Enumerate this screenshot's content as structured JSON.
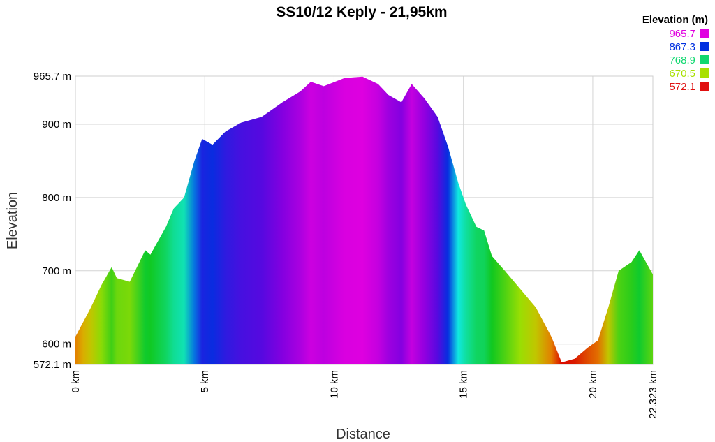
{
  "chart_data": {
    "type": "area",
    "title": "SS10/12 Keply - 21,95km",
    "xlabel": "Distance",
    "ylabel": "Elevation",
    "xlim": [
      0,
      22.323
    ],
    "ylim": [
      572.1,
      965.7
    ],
    "x_ticks": [
      {
        "value": 0,
        "label": "0 km"
      },
      {
        "value": 5,
        "label": "5 km"
      },
      {
        "value": 10,
        "label": "10 km"
      },
      {
        "value": 15,
        "label": "15 km"
      },
      {
        "value": 20,
        "label": "20 km"
      },
      {
        "value": 22.323,
        "label": "22.323 km"
      }
    ],
    "y_ticks": [
      {
        "value": 572.1,
        "label": "572.1 m"
      },
      {
        "value": 600,
        "label": "600 m"
      },
      {
        "value": 700,
        "label": "700 m"
      },
      {
        "value": 800,
        "label": "800 m"
      },
      {
        "value": 900,
        "label": "900 m"
      },
      {
        "value": 965.7,
        "label": "965.7 m"
      }
    ],
    "grid": true,
    "legend": {
      "title": "Elevation (m)",
      "placement": "top-right",
      "entries": [
        {
          "label": "965.7",
          "color": "#e000e0"
        },
        {
          "label": "867.3",
          "color": "#0030e0"
        },
        {
          "label": "768.9",
          "color": "#10d870"
        },
        {
          "label": "670.5",
          "color": "#a8e000"
        },
        {
          "label": "572.1",
          "color": "#e01010"
        }
      ]
    },
    "color_stops": [
      {
        "elevation": 572.1,
        "color": "#d80000"
      },
      {
        "elevation": 620.0,
        "color": "#e6a000"
      },
      {
        "elevation": 670.5,
        "color": "#a8e000"
      },
      {
        "elevation": 720.0,
        "color": "#10c820"
      },
      {
        "elevation": 768.9,
        "color": "#10d870"
      },
      {
        "elevation": 820.0,
        "color": "#10e8e0"
      },
      {
        "elevation": 867.3,
        "color": "#0030e0"
      },
      {
        "elevation": 920.0,
        "color": "#6a00e0"
      },
      {
        "elevation": 965.7,
        "color": "#e000e0"
      }
    ],
    "series": [
      {
        "x": [
          0,
          0.3,
          0.6,
          1.0,
          1.4,
          1.6,
          2.1,
          2.7,
          2.9,
          3.5,
          3.8,
          4.2,
          4.6,
          4.9,
          5.3,
          5.8,
          6.4,
          7.2,
          8.0,
          8.7,
          9.1,
          9.6,
          10.4,
          11.1,
          11.7,
          12.1,
          12.6,
          13.0,
          13.5,
          14.0,
          14.4,
          14.8,
          15.1,
          15.5,
          15.8,
          16.1,
          16.6,
          17.2,
          17.8,
          18.4,
          18.8,
          19.3,
          19.8,
          20.2,
          20.6,
          21.0,
          21.5,
          21.8,
          22.323
        ],
        "y": [
          610,
          630,
          650,
          680,
          705,
          690,
          685,
          728,
          722,
          760,
          785,
          800,
          850,
          880,
          872,
          890,
          902,
          910,
          930,
          945,
          958,
          952,
          963,
          965,
          955,
          940,
          930,
          955,
          935,
          910,
          870,
          820,
          790,
          760,
          755,
          720,
          700,
          675,
          650,
          610,
          575,
          580,
          595,
          605,
          650,
          700,
          712,
          728,
          695
        ]
      }
    ]
  }
}
